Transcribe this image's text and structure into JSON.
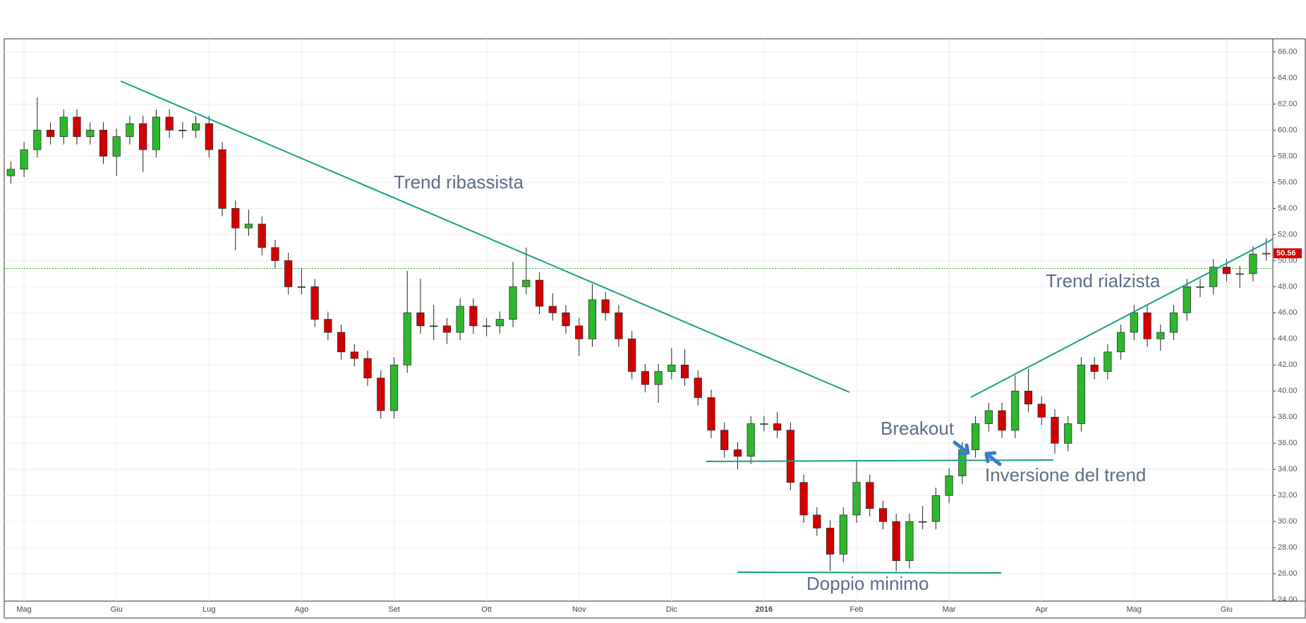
{
  "chart_data": {
    "type": "candlestick",
    "categories": [
      null,
      "Mag",
      null,
      null,
      null,
      null,
      null,
      null,
      "Giu",
      null,
      null,
      null,
      null,
      null,
      null,
      "Lug",
      null,
      null,
      null,
      null,
      null,
      null,
      "Ago",
      null,
      null,
      null,
      null,
      null,
      null,
      "Set",
      null,
      null,
      null,
      null,
      null,
      null,
      "Ott",
      null,
      null,
      null,
      null,
      null,
      null,
      "Nov",
      null,
      null,
      null,
      null,
      null,
      null,
      "Dic",
      null,
      null,
      null,
      null,
      null,
      null,
      "2016",
      null,
      null,
      null,
      null,
      null,
      null,
      "Feb",
      null,
      null,
      null,
      null,
      null,
      null,
      "Mar",
      null,
      null,
      null,
      null,
      null,
      null,
      "Apr",
      null,
      null,
      null,
      null,
      null,
      null,
      "Mag",
      null,
      null,
      null,
      null,
      null,
      null,
      "Giu",
      null,
      null,
      null
    ],
    "open": [
      56.5,
      57,
      58.5,
      60,
      59.5,
      61,
      59.5,
      60,
      58,
      59.5,
      60.5,
      58.5,
      61,
      60,
      60,
      60.5,
      58.5,
      54,
      52.5,
      52.8,
      51,
      50,
      48,
      48,
      45.5,
      44.5,
      43,
      42.5,
      41,
      38.5,
      42,
      46,
      45,
      45,
      44.5,
      46.5,
      45,
      45,
      45.5,
      48,
      48.5,
      46.5,
      46,
      45,
      44,
      47,
      46,
      44,
      41.5,
      40.5,
      41.5,
      42,
      41,
      39.5,
      37,
      35.5,
      35,
      37.5,
      37.5,
      37,
      33,
      30.5,
      29.5,
      27.5,
      30.5,
      33,
      31,
      30,
      27,
      30,
      30,
      32,
      33.5,
      35.5,
      37.5,
      38.5,
      37,
      40,
      39,
      38,
      36,
      37.5,
      42,
      41.5,
      43,
      44.5,
      46,
      44,
      44.5,
      46,
      48,
      48,
      49.5,
      49,
      49,
      50.5
    ],
    "high": [
      57.6,
      59.1,
      62.5,
      60.6,
      61.6,
      61.6,
      60.6,
      60.6,
      60.1,
      61.1,
      61.1,
      61.6,
      61.6,
      60.6,
      61.1,
      61.1,
      59.1,
      54.6,
      53.9,
      53.4,
      51.6,
      50.6,
      49.4,
      48.6,
      46.1,
      45.1,
      43.6,
      43.1,
      41.6,
      42.6,
      49.2,
      48.6,
      46.6,
      45.6,
      47.1,
      47.1,
      45.6,
      46.1,
      49.9,
      51,
      49.1,
      47.5,
      46.6,
      45.6,
      48.2,
      47.6,
      46.6,
      44.6,
      42.1,
      42.1,
      43.3,
      43.2,
      41.6,
      40.1,
      37.6,
      36.1,
      38.1,
      38.1,
      38.4,
      37.6,
      33.6,
      31.1,
      30.1,
      31.1,
      34.6,
      33.6,
      31.6,
      30.6,
      30.6,
      31.2,
      32.6,
      34.1,
      36.1,
      38.1,
      39.1,
      39.1,
      41.2,
      41.7,
      39.6,
      38.6,
      38.1,
      42.6,
      42.6,
      43.6,
      45.1,
      46.6,
      46.6,
      45.1,
      46.6,
      48.6,
      48.6,
      50.1,
      50.1,
      49.6,
      51.1,
      51.7
    ],
    "low": [
      55.9,
      56.4,
      57.9,
      58.9,
      58.9,
      58.9,
      58.9,
      57.4,
      56.5,
      58.9,
      56.8,
      57.9,
      59.4,
      59.4,
      59.4,
      57.9,
      53.4,
      50.8,
      51.9,
      50.4,
      49.4,
      47.4,
      47.4,
      44.9,
      43.9,
      42.4,
      41.9,
      40.4,
      37.9,
      37.9,
      41.4,
      44.4,
      43.9,
      43.6,
      43.9,
      44.4,
      44.2,
      44.4,
      44.9,
      47.4,
      45.9,
      45.4,
      44.4,
      42.7,
      43.4,
      45.4,
      43.4,
      40.9,
      39.9,
      39.1,
      40.9,
      40.4,
      38.9,
      36.4,
      34.9,
      34,
      34.4,
      36.9,
      36.4,
      32.4,
      29.9,
      28.9,
      26.2,
      26.9,
      29.9,
      30.4,
      29.4,
      26.2,
      26.4,
      29.4,
      29.4,
      31.4,
      32.9,
      34.9,
      36.9,
      36.4,
      36.4,
      38.4,
      37.4,
      35.2,
      35.4,
      36.9,
      40.9,
      40.9,
      42.4,
      43.9,
      43.4,
      43.1,
      43.9,
      45.4,
      47.2,
      47.4,
      48.4,
      47.9,
      48.4,
      50
    ],
    "close": [
      57,
      58.5,
      60,
      59.5,
      61,
      59.5,
      60,
      58,
      59.5,
      60.5,
      58.5,
      61,
      60,
      60,
      60.5,
      58.5,
      54,
      52.5,
      52.8,
      51,
      50,
      48,
      48,
      45.5,
      44.5,
      43,
      42.5,
      41,
      38.5,
      42,
      46,
      45,
      45,
      44.5,
      46.5,
      45,
      45,
      45.5,
      48,
      48.5,
      46.5,
      46,
      45,
      44,
      47,
      46,
      44,
      41.5,
      40.5,
      41.5,
      42,
      41,
      39.5,
      37,
      35.5,
      35,
      37.5,
      37.5,
      37,
      33,
      30.5,
      29.5,
      27.5,
      30.5,
      33,
      31,
      30,
      27,
      30,
      30,
      32,
      33.5,
      35.5,
      37.5,
      38.5,
      37,
      40,
      39,
      38,
      36,
      37.5,
      42,
      41.5,
      43,
      44.5,
      46,
      44,
      44.5,
      46,
      48,
      48,
      49.5,
      49,
      49,
      50.5,
      50.56
    ],
    "up_color": "#2db82d",
    "down_color": "#d40000",
    "ylim": [
      23.9,
      67
    ],
    "yticks": [
      {
        "value": 24,
        "label": "24.00"
      },
      {
        "value": 26,
        "label": "26.00"
      },
      {
        "value": 28,
        "label": "28.00"
      },
      {
        "value": 30,
        "label": "30.00"
      },
      {
        "value": 32,
        "label": "32.00"
      },
      {
        "value": 34,
        "label": "34.00"
      },
      {
        "value": 36,
        "label": "36.00"
      },
      {
        "value": 38,
        "label": "38.00"
      },
      {
        "value": 40,
        "label": "40.00"
      },
      {
        "value": 42,
        "label": "42.00"
      },
      {
        "value": 44,
        "label": "44.00"
      },
      {
        "value": 46,
        "label": "46.00"
      },
      {
        "value": 48,
        "label": "48.00"
      },
      {
        "value": 50,
        "label": "50.00"
      },
      {
        "value": 52,
        "label": "52.00"
      },
      {
        "value": 54,
        "label": "54.00"
      },
      {
        "value": 56,
        "label": "56.00"
      },
      {
        "value": 58,
        "label": "58.00"
      },
      {
        "value": 60,
        "label": "60.00"
      },
      {
        "value": 62,
        "label": "62.00"
      },
      {
        "value": 64,
        "label": "64.00"
      },
      {
        "value": 66,
        "label": "66.00"
      }
    ],
    "grid": true,
    "reference_line": 49.4,
    "last_price": 50.56,
    "annotations": [
      "Trend ribassista",
      "Trend rialzista",
      "Breakout",
      "Inversione del trend",
      "Doppio minimo"
    ]
  }
}
